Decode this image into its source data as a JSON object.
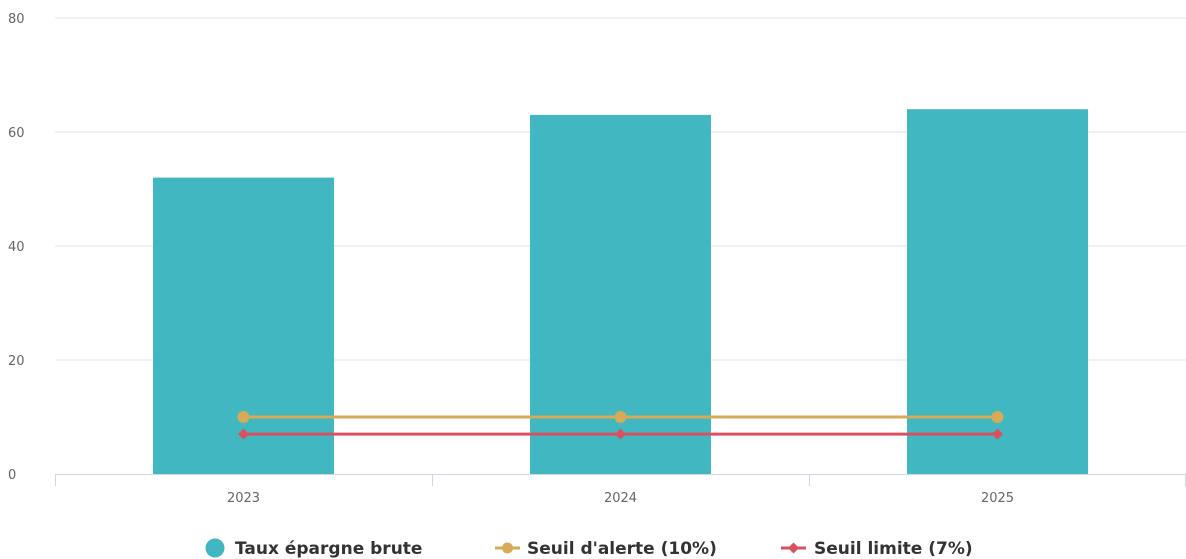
{
  "chart_data": {
    "type": "bar",
    "categories": [
      "2023",
      "2024",
      "2025"
    ],
    "ylim": [
      0,
      80
    ],
    "yticks": [
      0,
      20,
      40,
      60,
      80
    ],
    "grid": true,
    "legend_position": "bottom-center",
    "series": [
      {
        "name": "Taux épargne brute",
        "type": "bar",
        "values": [
          52,
          63,
          64
        ],
        "color": "#41b8c1",
        "marker": "circle"
      },
      {
        "name": "Seuil d'alerte (10%)",
        "type": "line",
        "values": [
          10,
          10,
          10
        ],
        "color": "#d8a956",
        "marker": "circle"
      },
      {
        "name": "Seuil limite (7%)",
        "type": "line",
        "values": [
          7,
          7,
          7
        ],
        "color": "#d9505f",
        "marker": "diamond"
      }
    ]
  }
}
